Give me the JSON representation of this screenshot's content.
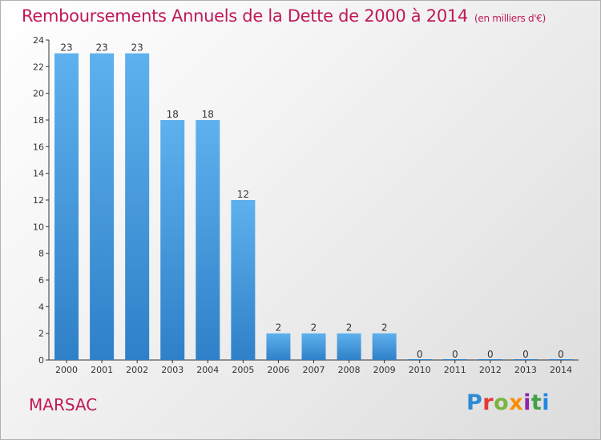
{
  "header": {
    "title": "Remboursements Annuels de la Dette de 2000 à 2014",
    "unit": "(en milliers d'€)"
  },
  "footer": {
    "commune": "MARSAC",
    "logo": "Proxiti",
    "logo_colors": [
      "#2e8bd3",
      "#e53935",
      "#7cb342",
      "#fb8c00",
      "#8e24aa",
      "#43a047",
      "#1e88e5"
    ]
  },
  "chart_data": {
    "type": "bar",
    "title": "Remboursements Annuels de la Dette de 2000 à 2014",
    "subtitle": "(en milliers d'€)",
    "xlabel": "",
    "ylabel": "",
    "categories": [
      "2000",
      "2001",
      "2002",
      "2003",
      "2004",
      "2005",
      "2006",
      "2007",
      "2008",
      "2009",
      "2010",
      "2011",
      "2012",
      "2013",
      "2014"
    ],
    "values": [
      23,
      23,
      23,
      18,
      18,
      12,
      2,
      2,
      2,
      2,
      0,
      0,
      0,
      0,
      0
    ],
    "ylim": [
      0,
      24
    ],
    "yticks": [
      0,
      2,
      4,
      6,
      8,
      10,
      12,
      14,
      16,
      18,
      20,
      22,
      24
    ],
    "grid": false,
    "bar_color": "#3a8fd8",
    "bar_color_light": "#5eb1ee"
  }
}
